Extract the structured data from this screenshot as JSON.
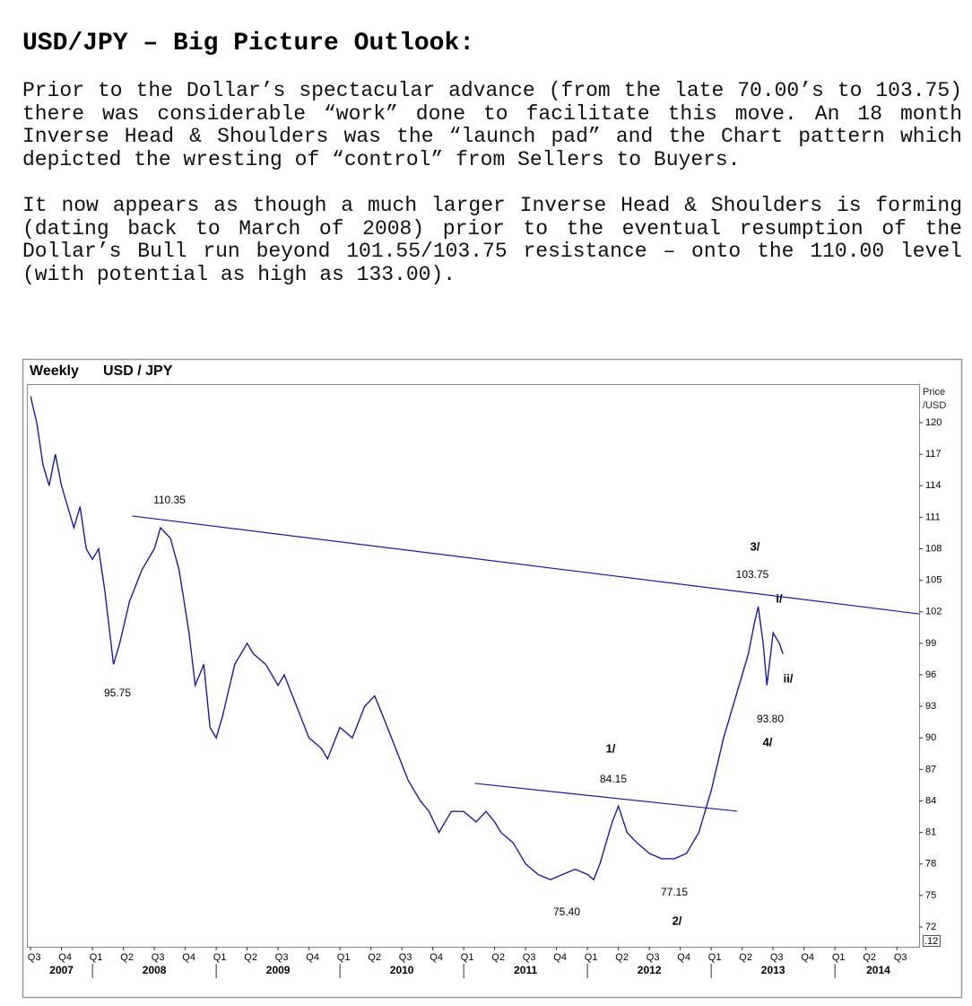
{
  "header": {
    "title": "USD/JPY – Big Picture Outlook:"
  },
  "paragraphs": [
    {
      "lines": [
        "Prior to the Dollar’s spectacular advance (from the late 70.00’s to 103.75)",
        "there was considerable “work” done to facilitate this move. An 18 month",
        "Inverse Head & Shoulders was the “launch pad” and the Chart pattern which",
        "depicted the wresting of “control” from Sellers to Buyers."
      ]
    },
    {
      "lines": [
        "It now appears as though a much larger Inverse Head & Shoulders is forming",
        "(dating back to March of 2008) prior to the eventual resumption of the",
        "Dollar’s Bull run beyond 101.55/103.75 resistance – onto the 110.00 level",
        "(with potential as high as 133.00)."
      ]
    }
  ],
  "chart_data": {
    "type": "line",
    "title": "Weekly",
    "subtitle": "USD / JPY",
    "y_label": "Price /USD",
    "scale_label": ".12",
    "color": "#1a1aa8",
    "xlim": [
      2007.47,
      2014.68
    ],
    "ylim": [
      70.12,
      123.67
    ],
    "yticks": [
      72,
      75,
      78,
      81,
      84,
      87,
      90,
      93,
      96,
      99,
      102,
      105,
      108,
      111,
      114,
      117,
      120
    ],
    "xticks": [
      {
        "value": 2007.5,
        "label": "Q3"
      },
      {
        "value": 2007.75,
        "label": "Q4"
      },
      {
        "value": 2008.0,
        "label": "Q1"
      },
      {
        "value": 2008.25,
        "label": "Q2"
      },
      {
        "value": 2008.5,
        "label": "Q3"
      },
      {
        "value": 2008.75,
        "label": "Q4"
      },
      {
        "value": 2009.0,
        "label": "Q1"
      },
      {
        "value": 2009.25,
        "label": "Q2"
      },
      {
        "value": 2009.5,
        "label": "Q3"
      },
      {
        "value": 2009.75,
        "label": "Q4"
      },
      {
        "value": 2010.0,
        "label": "Q1"
      },
      {
        "value": 2010.25,
        "label": "Q2"
      },
      {
        "value": 2010.5,
        "label": "Q3"
      },
      {
        "value": 2010.75,
        "label": "Q4"
      },
      {
        "value": 2011.0,
        "label": "Q1"
      },
      {
        "value": 2011.25,
        "label": "Q2"
      },
      {
        "value": 2011.5,
        "label": "Q3"
      },
      {
        "value": 2011.75,
        "label": "Q4"
      },
      {
        "value": 2012.0,
        "label": "Q1"
      },
      {
        "value": 2012.25,
        "label": "Q2"
      },
      {
        "value": 2012.5,
        "label": "Q3"
      },
      {
        "value": 2012.75,
        "label": "Q4"
      },
      {
        "value": 2013.0,
        "label": "Q1"
      },
      {
        "value": 2013.25,
        "label": "Q2"
      },
      {
        "value": 2013.5,
        "label": "Q3"
      },
      {
        "value": 2013.75,
        "label": "Q4"
      },
      {
        "value": 2014.0,
        "label": "Q1"
      },
      {
        "value": 2014.25,
        "label": "Q2"
      },
      {
        "value": 2014.5,
        "label": "Q3"
      }
    ],
    "year_ticks": [
      {
        "value": 2007.75,
        "label": "2007"
      },
      {
        "value": 2008.5,
        "label": "2008"
      },
      {
        "value": 2009.5,
        "label": "2009"
      },
      {
        "value": 2010.5,
        "label": "2010"
      },
      {
        "value": 2011.5,
        "label": "2011"
      },
      {
        "value": 2012.5,
        "label": "2012"
      },
      {
        "value": 2013.5,
        "label": "2013"
      },
      {
        "value": 2014.35,
        "label": "2014"
      }
    ],
    "x": [
      2007.5,
      2007.55,
      2007.6,
      2007.65,
      2007.7,
      2007.75,
      2007.8,
      2007.85,
      2007.9,
      2007.95,
      2008.0,
      2008.05,
      2008.1,
      2008.17,
      2008.22,
      2008.3,
      2008.4,
      2008.5,
      2008.55,
      2008.63,
      2008.7,
      2008.78,
      2008.83,
      2008.9,
      2008.95,
      2009.0,
      2009.05,
      2009.15,
      2009.25,
      2009.3,
      2009.4,
      2009.5,
      2009.55,
      2009.65,
      2009.75,
      2009.85,
      2009.9,
      2010.0,
      2010.1,
      2010.2,
      2010.28,
      2010.35,
      2010.45,
      2010.55,
      2010.65,
      2010.72,
      2010.8,
      2010.9,
      2011.0,
      2011.1,
      2011.18,
      2011.25,
      2011.3,
      2011.4,
      2011.5,
      2011.6,
      2011.7,
      2011.8,
      2011.9,
      2012.0,
      2012.05,
      2012.1,
      2012.2,
      2012.25,
      2012.32,
      2012.4,
      2012.5,
      2012.6,
      2012.7,
      2012.8,
      2012.9,
      2013.0,
      2013.1,
      2013.2,
      2013.3,
      2013.35,
      2013.38,
      2013.42,
      2013.45,
      2013.5,
      2013.55,
      2013.58
    ],
    "values": [
      122.5,
      120,
      116,
      114,
      117,
      114,
      112,
      110,
      112,
      108,
      107,
      108,
      104,
      97,
      99,
      103,
      106,
      108,
      110,
      109,
      106,
      100,
      95,
      97,
      91,
      90,
      92,
      97,
      99,
      98,
      97,
      95,
      96,
      93,
      90,
      89,
      88,
      91,
      90,
      93,
      94,
      92,
      89,
      86,
      84,
      83,
      81,
      83,
      83,
      82,
      83,
      82,
      81,
      80,
      78,
      77,
      76.5,
      77,
      77.5,
      77,
      76.5,
      78,
      82,
      83.5,
      81,
      80,
      79,
      78.5,
      78.5,
      79,
      81,
      85,
      90,
      94,
      98,
      101,
      102.5,
      99,
      95,
      100,
      99,
      98
    ],
    "trendlines": [
      {
        "x": [
          2008.32,
          2014.68
        ],
        "values": [
          111.12,
          101.8
        ]
      },
      {
        "x": [
          2011.09,
          2013.21
        ],
        "values": [
          85.67,
          83.02
        ]
      }
    ],
    "annotations": [
      "110.35",
      "95.75",
      "75.40",
      "84.15",
      "77.15",
      "103.75",
      "93.80",
      "1/",
      "2/",
      "3/",
      "4/",
      "i/",
      "ii/"
    ]
  }
}
